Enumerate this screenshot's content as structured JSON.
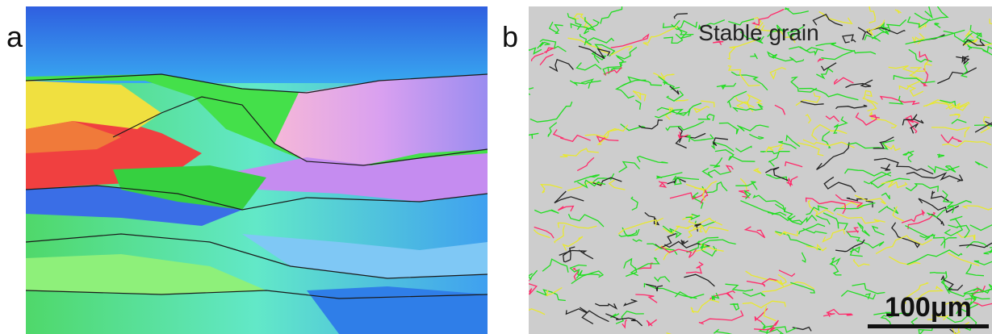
{
  "panels": [
    {
      "label": "a"
    },
    {
      "label": "b",
      "annotation": "Stable grain",
      "scale_bar": "100μm"
    }
  ]
}
